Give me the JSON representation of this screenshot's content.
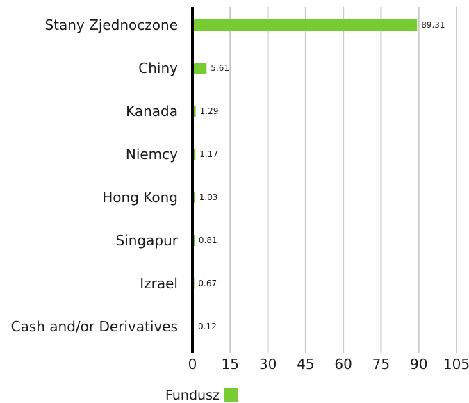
{
  "chart_data": {
    "type": "bar",
    "orientation": "horizontal",
    "categories": [
      "Stany Zjednoczone",
      "Chiny",
      "Kanada",
      "Niemcy",
      "Hong Kong",
      "Singapur",
      "Izrael",
      "Cash and/or Derivatives"
    ],
    "series": [
      {
        "name": "Fundusz",
        "values": [
          89.31,
          5.61,
          1.29,
          1.17,
          1.03,
          0.81,
          0.67,
          0.12
        ]
      }
    ],
    "data_labels": [
      "89.31",
      "5.61",
      "1.29",
      "1.17",
      "1.03",
      "0.81",
      "0.67",
      "0.12"
    ],
    "xticks": [
      "0",
      "15",
      "30",
      "45",
      "60",
      "75",
      "90",
      "105"
    ],
    "xlim": [
      0,
      105
    ],
    "grid": "vertical",
    "legend_position": "bottom",
    "colors": {
      "bar": "#77cc33",
      "grid": "#c8c8c8",
      "axis": "#000000"
    }
  },
  "legend": {
    "label": "Fundusz"
  }
}
